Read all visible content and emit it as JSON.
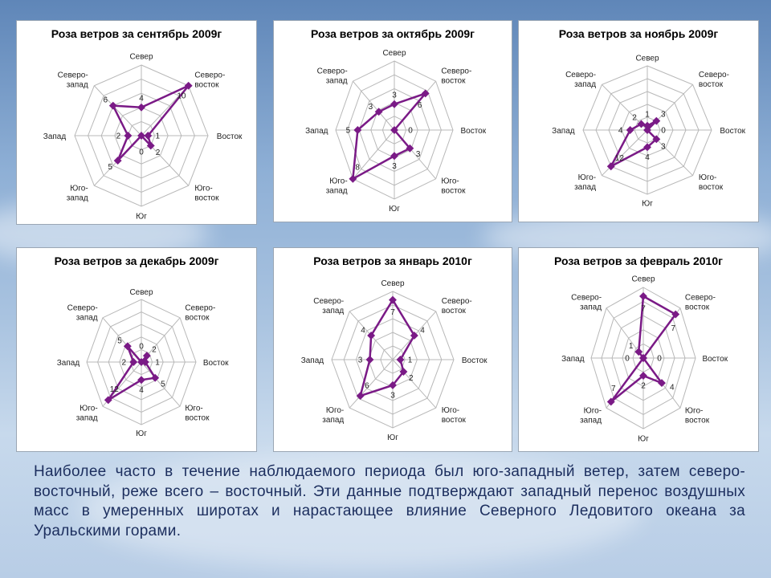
{
  "colors": {
    "series": "#7a1a86",
    "grid": "#b8b8b8"
  },
  "caption": "Наиболее часто в течение наблюдаемого периода был юго-западный ветер, затем северо-восточный, реже всего – восточный. Эти данные подтверждают западный перенос воздушных масс в умеренных широтах и нарастающее влияние Северного Ледовитого океана за Уральскими горами.",
  "chart_data": [
    {
      "type": "line",
      "coordinate_system": "polar",
      "title": "Роза ветров за сентябрь 2009г",
      "categories": [
        "Север",
        "Северо-восток",
        "Восток",
        "Юго-восток",
        "Юг",
        "Юго-запад",
        "Запад",
        "Северо-запад"
      ],
      "values": [
        4,
        10,
        1,
        2,
        0,
        5,
        2,
        6
      ],
      "rmax": 10
    },
    {
      "type": "line",
      "coordinate_system": "polar",
      "title": "Роза ветров за октябрь 2009г",
      "categories": [
        "Север",
        "Северо-восток",
        "Восток",
        "Юго-восток",
        "Юг",
        "Юго-запад",
        "Запад",
        "Северо-запад"
      ],
      "values": [
        3,
        6,
        0,
        3,
        3,
        8,
        5,
        3
      ],
      "rmax": 8
    },
    {
      "type": "line",
      "coordinate_system": "polar",
      "title": "Роза ветров за ноябрь 2009г",
      "categories": [
        "Север",
        "Северо-восток",
        "Восток",
        "Юго-восток",
        "Юг",
        "Юго-запад",
        "Запад",
        "Северо-запад"
      ],
      "values": [
        1,
        3,
        0,
        3,
        4,
        12,
        4,
        2
      ],
      "rmax": 15
    },
    {
      "type": "line",
      "coordinate_system": "polar",
      "title": "Роза ветров за декабрь 2009г",
      "categories": [
        "Север",
        "Северо-восток",
        "Восток",
        "Юго-восток",
        "Юг",
        "Юго-запад",
        "Запад",
        "Северо-запад"
      ],
      "values": [
        0,
        2,
        1,
        5,
        4,
        12,
        2,
        5
      ],
      "rmax": 14
    },
    {
      "type": "line",
      "coordinate_system": "polar",
      "title": "Роза ветров за январь 2010г",
      "categories": [
        "Север",
        "Северо-восток",
        "Восток",
        "Юго-восток",
        "Юг",
        "Юго-запад",
        "Запад",
        "Северо-запад"
      ],
      "values": [
        7,
        4,
        1,
        2,
        3,
        6,
        3,
        4
      ],
      "rmax": 8
    },
    {
      "type": "line",
      "coordinate_system": "polar",
      "title": "Роза ветров за февраль 2010г",
      "categories": [
        "Север",
        "Северо-восток",
        "Восток",
        "Юго-восток",
        "Юг",
        "Юго-запад",
        "Запад",
        "Северо-запад"
      ],
      "values": [
        7,
        7,
        0,
        4,
        2,
        7,
        0,
        1
      ],
      "rmax": 8
    }
  ]
}
